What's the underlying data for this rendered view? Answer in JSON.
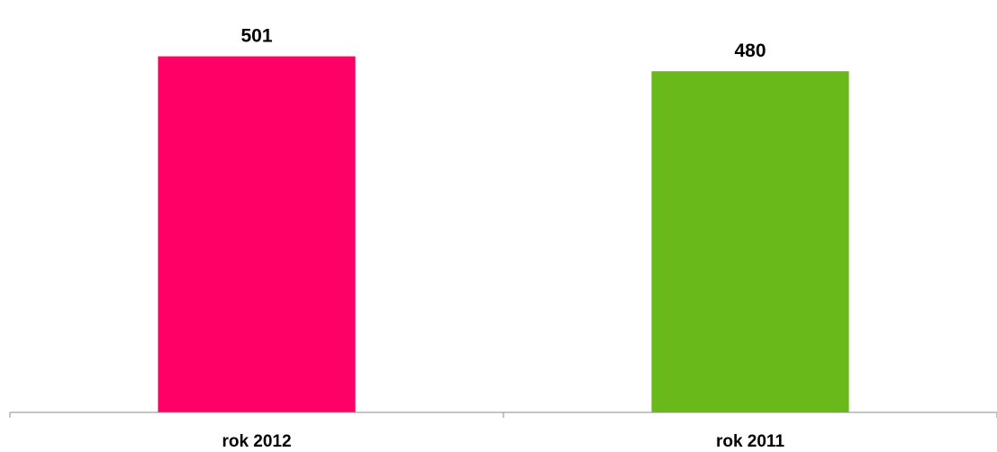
{
  "chart_data": {
    "type": "bar",
    "categories": [
      "rok 2012",
      "rok 2011"
    ],
    "values": [
      501,
      480
    ],
    "colors": [
      "#ff0066",
      "#6ab91b"
    ],
    "data_labels": [
      "501",
      "480"
    ],
    "ylim": [
      0,
      560
    ],
    "grid": false,
    "legend": "none",
    "y_axis_visible": false
  }
}
